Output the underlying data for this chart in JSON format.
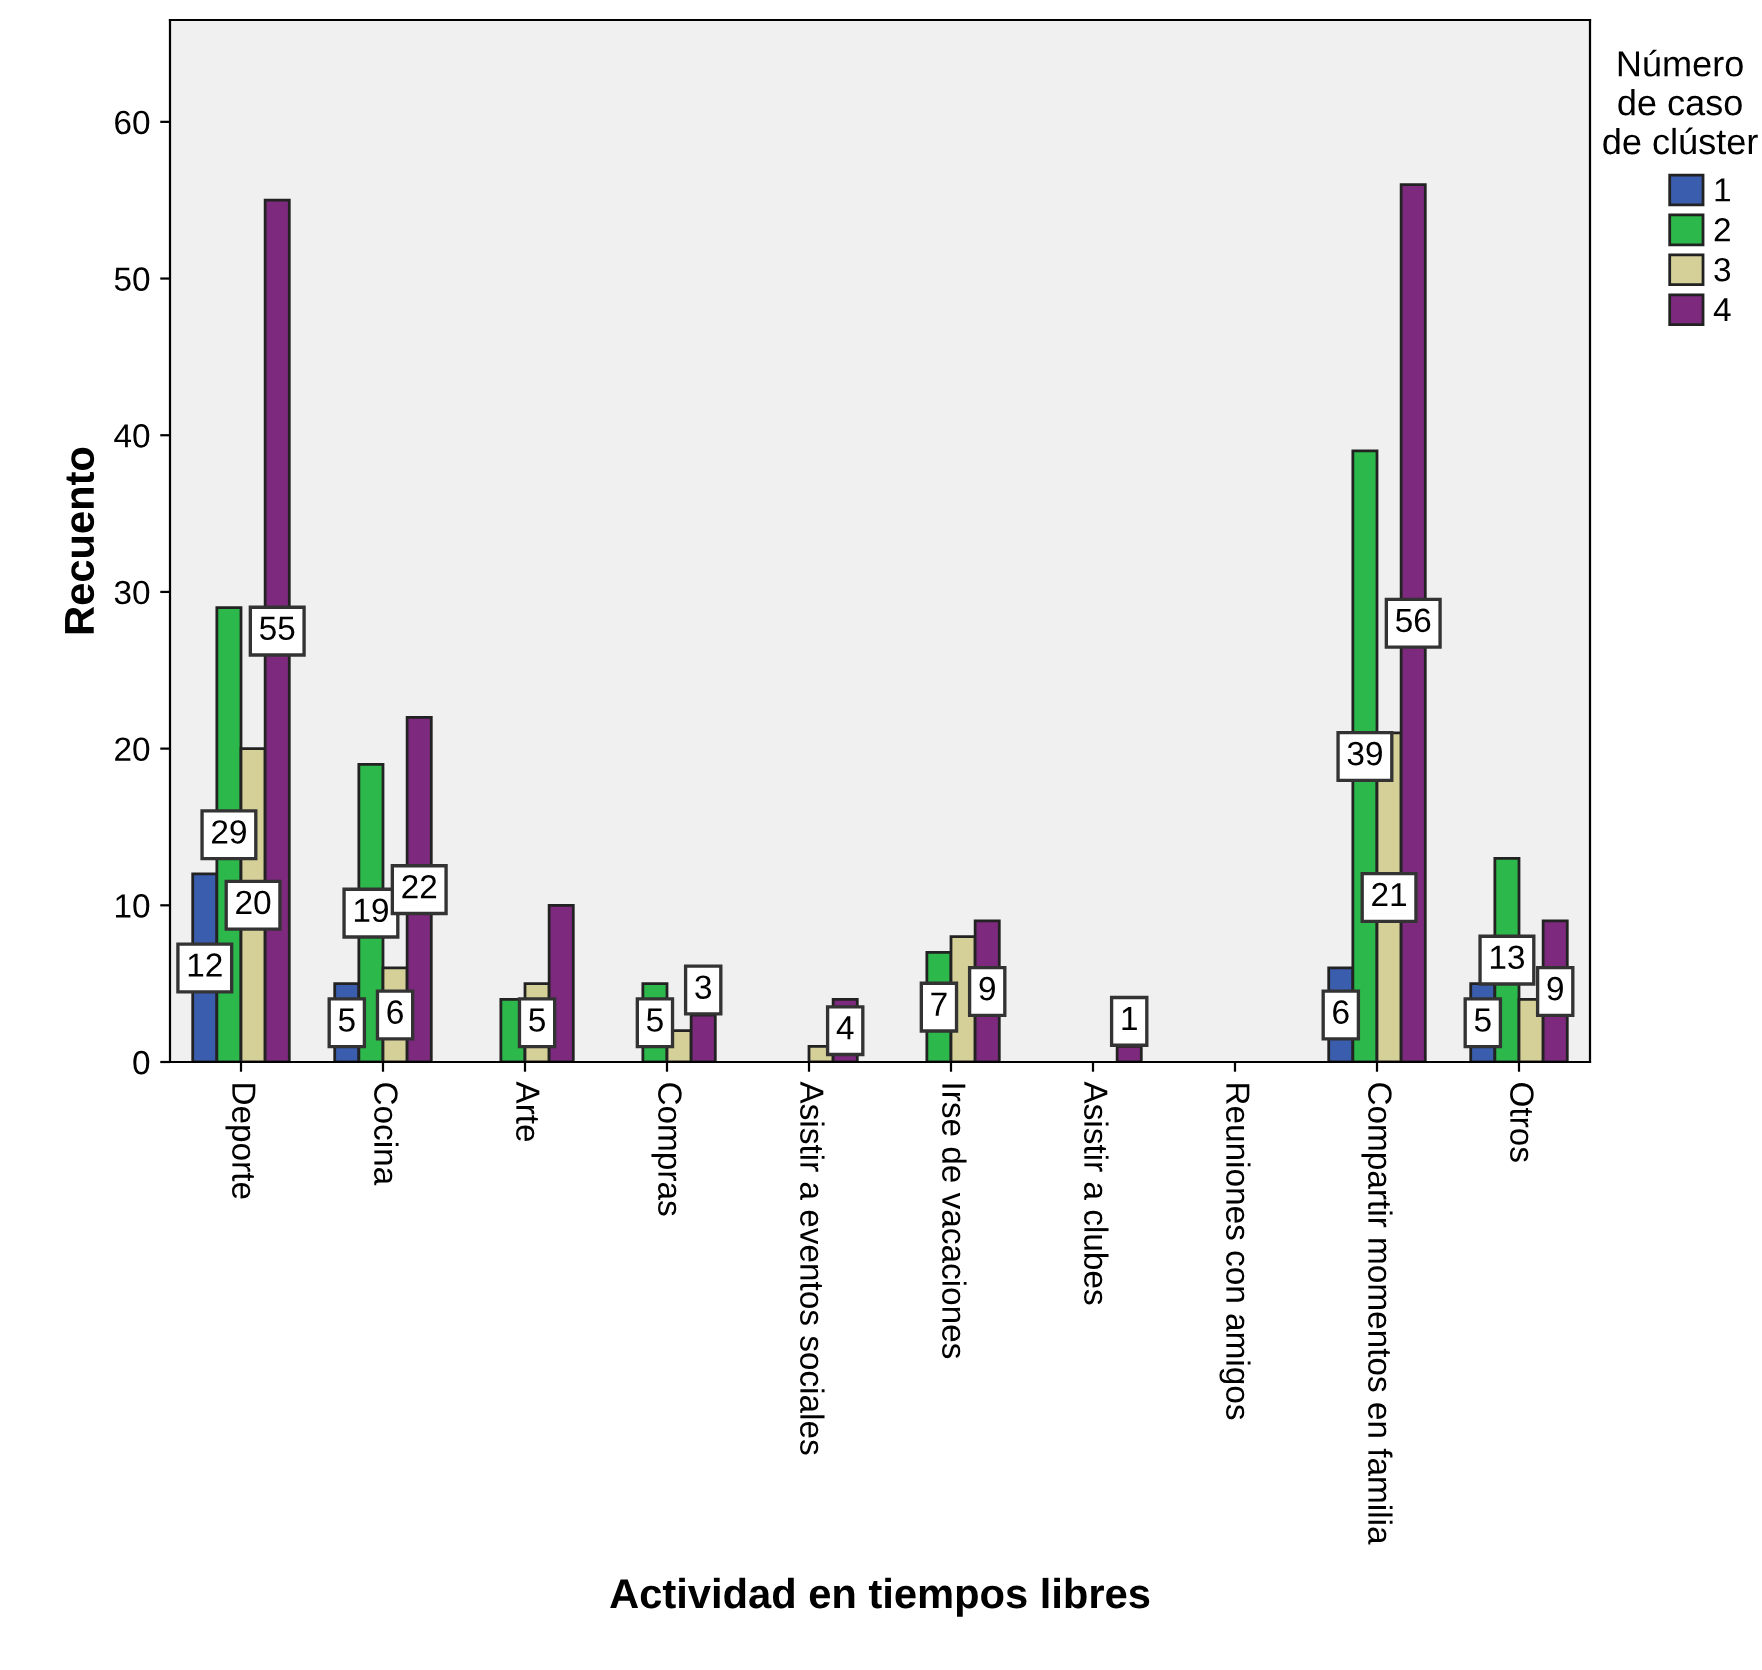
{
  "chart_data": {
    "type": "bar",
    "xlabel": "Actividad en tiempos libres",
    "ylabel": "Recuento",
    "legend_title": "Número de caso de clúster",
    "legend": "right",
    "grid": false,
    "categories": [
      "Deporte",
      "Cocina",
      "Arte",
      "Compras",
      "Asistir a eventos sociales",
      "Irse de vacaciones",
      "Asistir a clubes",
      "Reuniones con amigos",
      "Compartir momentos en familia",
      "Otros"
    ],
    "ylim": [
      0,
      66.5
    ],
    "yticks": [
      0,
      10,
      20,
      30,
      40,
      50,
      60
    ],
    "series": [
      {
        "name": "1",
        "color": "#3a5dae",
        "values": [
          12,
          5,
          null,
          null,
          null,
          null,
          null,
          null,
          6,
          5
        ],
        "value_labels": [
          "12",
          "5",
          null,
          null,
          null,
          null,
          null,
          null,
          "6",
          "5"
        ]
      },
      {
        "name": "2",
        "color": "#2cb84a",
        "values": [
          29,
          19,
          4,
          5,
          null,
          7,
          null,
          null,
          39,
          13
        ],
        "value_labels": [
          "29",
          "19",
          null,
          "5",
          null,
          "7",
          null,
          null,
          "39",
          "13"
        ]
      },
      {
        "name": "3",
        "color": "#d5cf98",
        "values": [
          20,
          6,
          5,
          2,
          1,
          8,
          null,
          null,
          21,
          4
        ],
        "value_labels": [
          "20",
          "6",
          "5",
          null,
          null,
          null,
          null,
          null,
          "21",
          null
        ]
      },
      {
        "name": "4",
        "color": "#7d2a7e",
        "values": [
          55,
          22,
          10,
          3,
          4,
          9,
          1,
          null,
          56,
          9
        ],
        "value_labels": [
          "55",
          "22",
          null,
          "3",
          "4",
          "9",
          "1",
          null,
          "56",
          "9"
        ]
      }
    ]
  }
}
